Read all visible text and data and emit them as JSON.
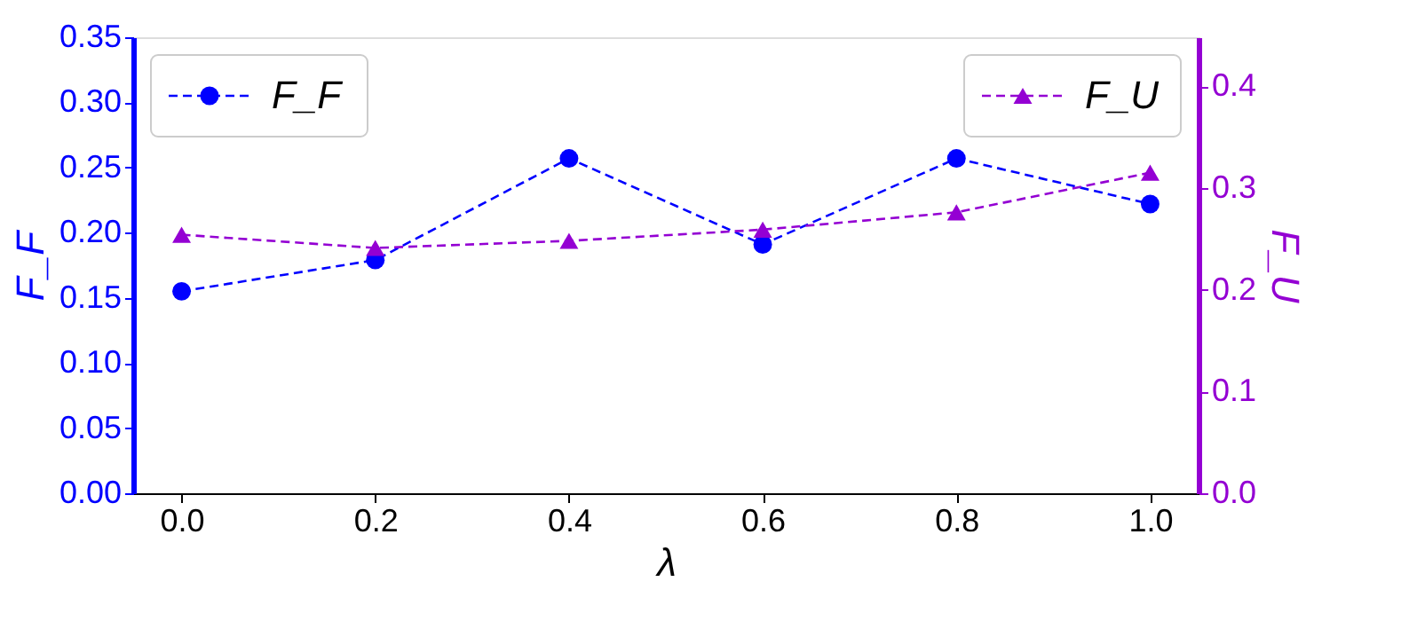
{
  "chart_data": {
    "type": "line",
    "xlabel": "λ",
    "ylabel": "F_F",
    "y2label": "F_U",
    "x": [
      0.0,
      0.2,
      0.4,
      0.6,
      0.8,
      1.0
    ],
    "series": [
      {
        "name": "F_F",
        "color": "#0000ff",
        "marker": "circle",
        "line_style": "dashed",
        "values": [
          0.155,
          0.179,
          0.257,
          0.191,
          0.257,
          0.222
        ]
      },
      {
        "name": "F_U",
        "color": "#9400d3",
        "marker": "triangle",
        "line_style": "dashed",
        "axis": "y2",
        "values": [
          0.254,
          0.241,
          0.248,
          0.259,
          0.276,
          0.315
        ]
      }
    ],
    "xlim": [
      -0.05,
      1.05
    ],
    "xticks": [
      {
        "value": 0.0,
        "label": "0.0"
      },
      {
        "value": 0.2,
        "label": "0.2"
      },
      {
        "value": 0.4,
        "label": "0.4"
      },
      {
        "value": 0.6,
        "label": "0.6"
      },
      {
        "value": 0.8,
        "label": "0.8"
      },
      {
        "value": 1.0,
        "label": "1.0"
      }
    ],
    "ylim": [
      0,
      0.35
    ],
    "yticks": [
      {
        "value": 0,
        "label": "0.00"
      },
      {
        "value": 0.05,
        "label": "0.05"
      },
      {
        "value": 0.1,
        "label": "0.10"
      },
      {
        "value": 0.15,
        "label": "0.15"
      },
      {
        "value": 0.2,
        "label": "0.20"
      },
      {
        "value": 0.25,
        "label": "0.25"
      },
      {
        "value": 0.3,
        "label": "0.30"
      },
      {
        "value": 0.35,
        "label": "0.35"
      }
    ],
    "y2lim": [
      0,
      0.448
    ],
    "y2ticks": [
      {
        "value": 0,
        "label": "0.0"
      },
      {
        "value": 0.1,
        "label": "0.1"
      },
      {
        "value": 0.2,
        "label": "0.2"
      },
      {
        "value": 0.3,
        "label": "0.3"
      },
      {
        "value": 0.4,
        "label": "0.4"
      }
    ],
    "grid": false,
    "legend": "top"
  }
}
